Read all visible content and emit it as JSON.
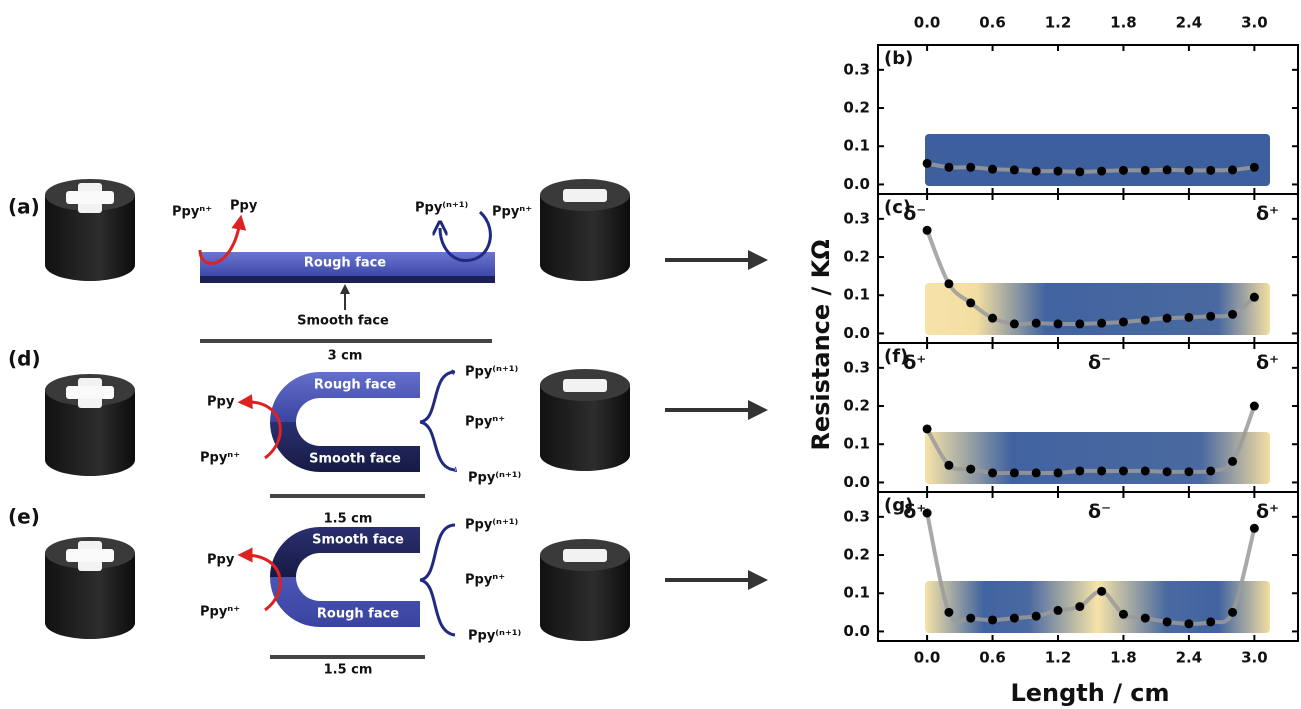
{
  "diagram": {
    "rows": [
      {
        "label": "(a)",
        "left_in": "Ppyⁿ⁺",
        "left_out": "Ppy",
        "right_out": "Ppy⁽ⁿ⁺¹⁾",
        "right_in": "Ppyⁿ⁺",
        "top_face": "Rough face",
        "bottom_face": "Smooth face",
        "length": "3 cm"
      },
      {
        "label": "(d)",
        "left_out": "Ppy",
        "left_in": "Ppyⁿ⁺",
        "right_top": "Ppy⁽ⁿ⁺¹⁾",
        "right_mid": "Ppyⁿ⁺",
        "right_bottom": "Ppy⁽ⁿ⁺¹⁾",
        "top_face": "Rough face",
        "bottom_face": "Smooth face",
        "length": "1.5 cm"
      },
      {
        "label": "(e)",
        "left_out": "Ppy",
        "left_in": "Ppyⁿ⁺",
        "right_top": "Ppy⁽ⁿ⁺¹⁾",
        "right_mid": "Ppyⁿ⁺",
        "right_bottom": "Ppy⁽ⁿ⁺¹⁾",
        "top_face": "Smooth face",
        "bottom_face": "Rough face",
        "length": "1.5 cm"
      }
    ]
  },
  "shared_axes": {
    "y_label": "Resistance / KΩ",
    "x_label": "Length / cm"
  },
  "chart_data": [
    {
      "type": "scatter",
      "title": "(b)",
      "color": "#000000",
      "line_color": "#9a9a9a",
      "x": [
        0,
        0.2,
        0.4,
        0.6,
        0.8,
        1.0,
        1.2,
        1.4,
        1.6,
        1.8,
        2.0,
        2.2,
        2.4,
        2.6,
        2.8,
        3.0
      ],
      "values": [
        0.055,
        0.045,
        0.045,
        0.04,
        0.038,
        0.035,
        0.035,
        0.033,
        0.035,
        0.037,
        0.037,
        0.038,
        0.037,
        0.037,
        0.038,
        0.045
      ],
      "annotations": [],
      "xlim": [
        -0.45,
        3.4
      ],
      "ylim": [
        -0.025,
        0.365
      ],
      "xticks": [
        {
          "value": 0,
          "label": "0.0"
        },
        {
          "value": 0.6,
          "label": "0.6"
        },
        {
          "value": 1.2,
          "label": "1.2"
        },
        {
          "value": 1.8,
          "label": "1.8"
        },
        {
          "value": 2.4,
          "label": "2.4"
        },
        {
          "value": 3.0,
          "label": "3.0"
        }
      ],
      "yticks": [
        {
          "value": 0,
          "label": "0.0"
        },
        0.1,
        0.2,
        0.3
      ]
    },
    {
      "type": "scatter",
      "title": "(c)",
      "color": "#000000",
      "line_color": "#9a9a9a",
      "x": [
        0,
        0.2,
        0.4,
        0.6,
        0.8,
        1.0,
        1.2,
        1.4,
        1.6,
        1.8,
        2.0,
        2.2,
        2.4,
        2.6,
        2.8,
        3.0
      ],
      "values": [
        0.27,
        0.13,
        0.08,
        0.04,
        0.025,
        0.027,
        0.025,
        0.025,
        0.027,
        0.03,
        0.035,
        0.04,
        0.042,
        0.045,
        0.05,
        0.095
      ],
      "annotations": [
        "δ⁻",
        "δ⁺"
      ],
      "xlim": [
        -0.45,
        3.4
      ],
      "ylim": [
        -0.025,
        0.365
      ],
      "xticks": [
        {
          "value": 0,
          "label": "0.0"
        },
        {
          "value": 0.6,
          "label": "0.6"
        },
        {
          "value": 1.2,
          "label": "1.2"
        },
        {
          "value": 1.8,
          "label": "1.8"
        },
        {
          "value": 2.4,
          "label": "2.4"
        },
        {
          "value": 3.0,
          "label": "3.0"
        }
      ],
      "yticks": [
        {
          "value": 0,
          "label": "0.0"
        },
        0.1,
        0.2,
        0.3
      ]
    },
    {
      "type": "scatter",
      "title": "(f)",
      "color": "#000000",
      "line_color": "#9a9a9a",
      "x": [
        0,
        0.2,
        0.4,
        0.6,
        0.8,
        1.0,
        1.2,
        1.4,
        1.6,
        1.8,
        2.0,
        2.2,
        2.4,
        2.6,
        2.8,
        3.0
      ],
      "values": [
        0.14,
        0.045,
        0.035,
        0.025,
        0.025,
        0.025,
        0.025,
        0.03,
        0.03,
        0.03,
        0.03,
        0.028,
        0.028,
        0.03,
        0.055,
        0.2
      ],
      "annotations": [
        "δ⁺",
        "δ⁻",
        "δ⁺"
      ],
      "xlim": [
        -0.45,
        3.4
      ],
      "ylim": [
        -0.025,
        0.365
      ],
      "xticks": [
        {
          "value": 0,
          "label": "0.0"
        },
        {
          "value": 0.6,
          "label": "0.6"
        },
        {
          "value": 1.2,
          "label": "1.2"
        },
        {
          "value": 1.8,
          "label": "1.8"
        },
        {
          "value": 2.4,
          "label": "2.4"
        },
        {
          "value": 3.0,
          "label": "3.0"
        }
      ],
      "yticks": [
        {
          "value": 0,
          "label": "0.0"
        },
        0.1,
        0.2,
        0.3
      ]
    },
    {
      "type": "scatter",
      "title": "(g)",
      "color": "#000000",
      "line_color": "#9a9a9a",
      "x": [
        0,
        0.2,
        0.4,
        0.6,
        0.8,
        1.0,
        1.2,
        1.4,
        1.6,
        1.8,
        2.0,
        2.2,
        2.4,
        2.6,
        2.8,
        3.0
      ],
      "values": [
        0.31,
        0.05,
        0.035,
        0.03,
        0.035,
        0.04,
        0.055,
        0.065,
        0.105,
        0.045,
        0.035,
        0.025,
        0.02,
        0.025,
        0.05,
        0.27
      ],
      "annotations": [
        "δ⁺",
        "δ⁻",
        "δ⁺"
      ],
      "xlim": [
        -0.45,
        3.4
      ],
      "ylim": [
        -0.025,
        0.365
      ],
      "xticks": [
        {
          "value": 0,
          "label": "0.0"
        },
        {
          "value": 0.6,
          "label": "0.6"
        },
        {
          "value": 1.2,
          "label": "1.2"
        },
        {
          "value": 1.8,
          "label": "1.8"
        },
        {
          "value": 2.4,
          "label": "2.4"
        },
        {
          "value": 3.0,
          "label": "3.0"
        }
      ],
      "yticks": [
        {
          "value": 0,
          "label": "0.0"
        },
        0.1,
        0.2,
        0.3
      ]
    }
  ]
}
